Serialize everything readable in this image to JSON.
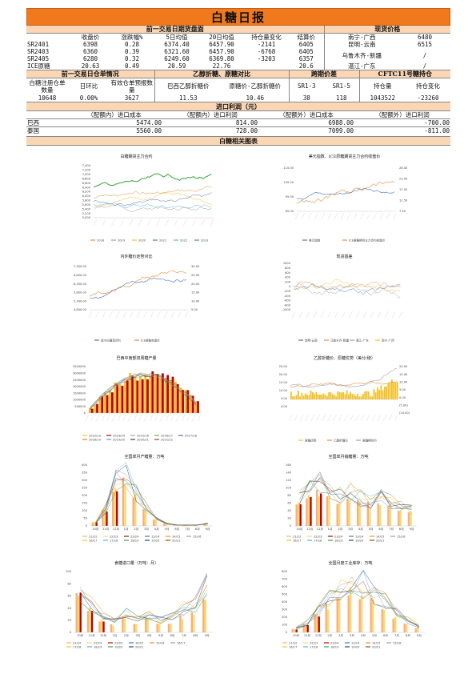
{
  "title": "白糖日报",
  "futures": {
    "section_title": "前一交易日期货盘面",
    "headers": [
      "收盘价",
      "涨跌幅%",
      "5日均值",
      "20日均值",
      "持仓量变化",
      "结算价"
    ],
    "rows": [
      {
        "name": "SR2401",
        "close": "6398",
        "chg": "0.28",
        "ma5": "6374.40",
        "ma20": "6457.90",
        "oi": "-2141",
        "settle": "6405"
      },
      {
        "name": "SR2403",
        "close": "6360",
        "chg": "0.39",
        "ma5": "6321.60",
        "ma20": "6457.90",
        "oi": "-6768",
        "settle": "6405"
      },
      {
        "name": "SR2405",
        "close": "6280",
        "chg": "0.32",
        "ma5": "6249.60",
        "ma20": "6369.80",
        "oi": "-3203",
        "settle": "6357"
      },
      {
        "name": "ICE原糖",
        "close": "20.63",
        "chg": "0.49",
        "ma5": "20.59",
        "ma20": "22.76",
        "oi": "",
        "settle": "20.6"
      }
    ]
  },
  "spot": {
    "section_title": "现货价格",
    "rows": [
      {
        "region": "南宁-广西",
        "price": "6480"
      },
      {
        "region": "昆明-云南",
        "price": "6515"
      },
      {
        "region": "乌鲁木齐-新疆",
        "price": "/"
      },
      {
        "region": "湛江-广东",
        "price": "/"
      }
    ]
  },
  "warehouse": {
    "section_title": "前一交易日仓单情况",
    "h1": "白糖注册仓单数量",
    "h2": "日环比",
    "h3": "有效仓单预报数量",
    "v1": "10648",
    "v2": "0.00%",
    "v3": "3627"
  },
  "ethanol": {
    "section_title": "乙醇折糖、原糖对比",
    "h1": "巴西乙醇折糖价",
    "h2": "原糖价-乙醇折糖价",
    "v1": "11.53",
    "v2": "10.46"
  },
  "spread": {
    "section_title": "跨期价差",
    "h1": "SR1-3",
    "h2": "SR1-5",
    "v1": "38",
    "v2": "118"
  },
  "cftc": {
    "section_title": "CFTC11号糖持仓",
    "h1": "持仓量",
    "h2": "持仓变化",
    "v1": "1043522",
    "v2": "-23260"
  },
  "import_profit": {
    "section_title": "进口利润（元）",
    "headers": [
      "（配额内）进口成本",
      "（配额内）进口利润",
      "（配额外）进口成本",
      "（配额外）进口利润"
    ],
    "rows": [
      {
        "name": "巴西",
        "c1": "5474.00",
        "p1": "814.00",
        "c2": "6988.00",
        "p2": "-700.00"
      },
      {
        "name": "泰国",
        "c1": "5560.00",
        "p1": "728.00",
        "c2": "7099.00",
        "p2": "-811.00"
      }
    ]
  },
  "charts_section_title": "白糖相关图表",
  "charts": {
    "c1": {
      "title": "白糖期货主力合约",
      "yticks": [
        "7,400",
        "7,200",
        "7,000",
        "6,800",
        "6,600",
        "6,400",
        "6,200",
        "6,000",
        "5,800",
        "5,600",
        "5,400",
        "5,200",
        "5,000"
      ],
      "legend": [
        "2018",
        "2019",
        "2020",
        "2021",
        "2022",
        "2023"
      ],
      "colors": [
        "#e58c3a",
        "#9aa1ad",
        "#f2c028",
        "#4a72c4",
        "#5ab0e0",
        "#3aa33a"
      ]
    },
    "c2": {
      "title": "美元指数、ICE原糖期货主力合约收盘价",
      "yticks_left": [
        "115.00",
        "105.00",
        "95.00",
        "85.00"
      ],
      "yticks_right": [
        "28.00",
        "23.00",
        "17.50",
        "12.50",
        "7.50"
      ],
      "legend": [
        "美元指数",
        "ICE原糖期货主力合约收盘价"
      ],
      "colors": [
        "#4a72c4",
        "#e58c3a"
      ]
    },
    "c3": {
      "title": "内外糖价走势对比",
      "yticks_left": [
        "7,300.00",
        "6,800.00",
        "6,300.00",
        "5,800.00",
        "5,300.00",
        "4,800.00"
      ],
      "yticks_right": [
        "30.00",
        "25.00",
        "20.00",
        "15.00",
        "10.00",
        "5.00"
      ],
      "legend": [
        "南宁白糖现货价",
        "ICE原糖收盘价"
      ],
      "colors": [
        "#4a72c4",
        "#e58c3a"
      ]
    },
    "c4": {
      "title": "现货基差",
      "yticks": [
        "1000",
        "800",
        "600",
        "400",
        "200",
        "0",
        "-200",
        "-400",
        "-600",
        "-800",
        "-1000"
      ],
      "legend": [
        "昆明-云南",
        "乌鲁木齐-新疆",
        "湛江-广东",
        "南宁-广西"
      ],
      "colors": [
        "#4a72c4",
        "#e58c3a",
        "#9aa1ad",
        "#f2c028"
      ]
    },
    "c5": {
      "title": "巴西中南部双周糖产量",
      "yticks": [
        "3500000",
        "3000000",
        "2500000",
        "2000000",
        "1500000",
        "1000000",
        "500000",
        "0"
      ],
      "legend": [
        "2022/23",
        "2023/24",
        "2015/16",
        "2016/17",
        "2017/18",
        "2018/19",
        "2019/20",
        "2020/21",
        "2021/22"
      ],
      "colors": [
        "#f2c028",
        "#c00000",
        "#a5a5a5",
        "#70ad47",
        "#4472c4",
        "#ed7d31",
        "#5b9bd5",
        "#264478",
        "#9e480e"
      ]
    },
    "c6": {
      "title": "乙醇折糖价、原糖优势（美分/磅）",
      "yticks_left": [
        "25.00",
        "20.00",
        "15.00",
        "10.00",
        "5.00",
        "0.00"
      ],
      "yticks_right": [
        "20.00",
        "15.00",
        "10.00",
        "5.00",
        "0.00",
        "(5.00)",
        "(10.00)"
      ],
      "legend": [
        "原糖优势",
        "乙醇折糖价",
        "原糖期货价"
      ],
      "colors": [
        "#f2c028",
        "#e58c3a",
        "#9aa1ad"
      ]
    },
    "c7": {
      "title": "全国单月产糖量：万吨",
      "yticks": [
        "400",
        "350",
        "300",
        "250",
        "200",
        "150",
        "100",
        "50",
        "0"
      ],
      "xlabels": [
        "10月",
        "11月",
        "12月",
        "1月",
        "2月",
        "3月",
        "4月",
        "5月",
        "6月",
        "7月",
        "8月",
        "9月"
      ],
      "legend": [
        "21/22",
        "22/23",
        "23/24",
        "13/14",
        "14/15",
        "15/16",
        "16/17",
        "17/18",
        "18/19",
        "19/20",
        "20/21"
      ]
    },
    "c8": {
      "title": "全国单月销糖量：万吨",
      "yticks": [
        "160",
        "140",
        "120",
        "100",
        "80",
        "60",
        "40",
        "20",
        "0"
      ],
      "xlabels": [
        "10月",
        "11月",
        "12月",
        "1月",
        "2月",
        "3月",
        "4月",
        "5月",
        "6月",
        "7月",
        "8月",
        "9月"
      ],
      "legend": [
        "21/22",
        "22/23",
        "23/24",
        "13/14",
        "14/15",
        "15/16",
        "16/17",
        "17/18",
        "18/19",
        "19/20",
        "20/21"
      ]
    },
    "c9": {
      "title": "食糖进口量（万吨：月）",
      "yticks": [
        "100",
        "80",
        "60",
        "40",
        "20",
        "0"
      ],
      "xlabels": [
        "10月",
        "11月",
        "12月",
        "1月",
        "2月",
        "3月",
        "4月",
        "5月",
        "6月",
        "7月",
        "8月",
        "9月"
      ],
      "legend": [
        "21/22",
        "22/23",
        "23/24",
        "14/15",
        "15/16",
        "16/17",
        "17/18",
        "18/19",
        "19/20",
        "20/21"
      ]
    },
    "c10": {
      "title": "全国月度工业库存：万吨",
      "yticks": [
        "800",
        "700",
        "600",
        "500",
        "400",
        "300",
        "200",
        "100",
        "0"
      ],
      "xlabels": [
        "10月",
        "11月",
        "12月",
        "1月",
        "2月",
        "3月",
        "4月",
        "5月",
        "6月",
        "7月",
        "8月",
        "9月"
      ],
      "legend": [
        "21/22",
        "22/23",
        "23/24",
        "13/14",
        "14/15",
        "15/16",
        "16/17",
        "17/18",
        "18/19",
        "19/20",
        "20/21"
      ]
    }
  }
}
